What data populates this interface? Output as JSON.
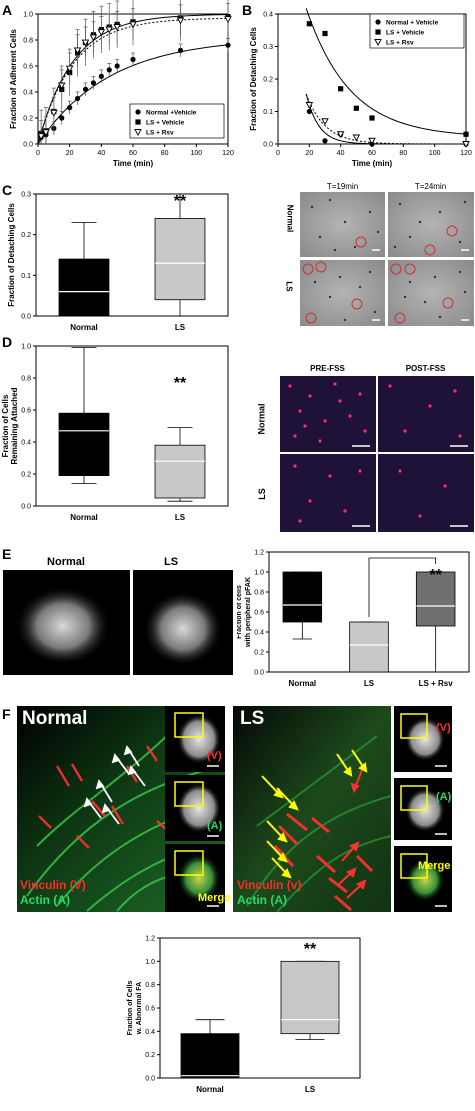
{
  "panels": {
    "A": {
      "letter": "A"
    },
    "B": {
      "letter": "B"
    },
    "C": {
      "letter": "C"
    },
    "D": {
      "letter": "D"
    },
    "E": {
      "letter": "E"
    },
    "F": {
      "letter": "F"
    }
  },
  "chart_data": [
    {
      "id": "A",
      "type": "line",
      "ylabel": "Fraction of Adherent Cells",
      "xlabel": "Time (min)",
      "xlim": [
        0,
        120
      ],
      "ylim": [
        0,
        1.0
      ],
      "xticks": [
        "0",
        "20",
        "40",
        "60",
        "80",
        "100",
        "120"
      ],
      "yticks": [
        "0.0",
        "0.2",
        "0.4",
        "0.6",
        "0.8",
        "1.0"
      ],
      "legend_position": "bottom-right",
      "series": [
        {
          "name": "Normal +Vehicle",
          "marker": "circle",
          "x": [
            2,
            5,
            10,
            15,
            20,
            25,
            30,
            35,
            40,
            45,
            50,
            60,
            90,
            120
          ],
          "y": [
            0.05,
            0.07,
            0.12,
            0.2,
            0.28,
            0.35,
            0.42,
            0.47,
            0.52,
            0.57,
            0.6,
            0.65,
            0.72,
            0.76
          ]
        },
        {
          "name": "LS + Vehicle",
          "marker": "square",
          "x": [
            2,
            5,
            10,
            15,
            20,
            25,
            30,
            35,
            40,
            45,
            50,
            60,
            90,
            120
          ],
          "y": [
            0.08,
            0.1,
            0.25,
            0.42,
            0.55,
            0.7,
            0.78,
            0.84,
            0.88,
            0.9,
            0.92,
            0.94,
            0.97,
            0.98
          ]
        },
        {
          "name": "LS + Rsv",
          "marker": "triangle-down",
          "x": [
            2,
            5,
            10,
            15,
            20,
            25,
            30,
            35,
            40,
            45,
            50,
            60,
            90,
            120
          ],
          "y": [
            0.06,
            0.09,
            0.24,
            0.45,
            0.58,
            0.72,
            0.78,
            0.82,
            0.86,
            0.88,
            0.9,
            0.92,
            0.95,
            0.96
          ]
        }
      ]
    },
    {
      "id": "B",
      "type": "scatter",
      "ylabel": "Fraction of Detaching Cells",
      "xlabel": "Time (min)",
      "xlim": [
        0,
        120
      ],
      "ylim": [
        0,
        0.4
      ],
      "xticks": [
        "0",
        "20",
        "40",
        "60",
        "80",
        "100",
        "120"
      ],
      "yticks": [
        "0.0",
        "0.1",
        "0.2",
        "0.3",
        "0.4"
      ],
      "legend_position": "top-right",
      "series": [
        {
          "name": "Normal + Vehicle",
          "marker": "circle",
          "x": [
            20,
            30,
            40,
            60,
            120
          ],
          "y": [
            0.1,
            0.01,
            0.03,
            0.0,
            0.0
          ]
        },
        {
          "name": "LS + Vehicle",
          "marker": "square",
          "x": [
            20,
            30,
            40,
            50,
            60,
            120
          ],
          "y": [
            0.37,
            0.34,
            0.17,
            0.11,
            0.08,
            0.03
          ]
        },
        {
          "name": "LS + Rsv",
          "marker": "triangle-down",
          "x": [
            20,
            30,
            40,
            50,
            60,
            120
          ],
          "y": [
            0.12,
            0.07,
            0.03,
            0.02,
            0.01,
            0.0
          ]
        }
      ]
    },
    {
      "id": "C",
      "type": "box",
      "ylabel": "Fraction of Detaching Cells",
      "ylim": [
        0,
        0.3
      ],
      "yticks": [
        "0.0",
        "0.1",
        "0.2",
        "0.3"
      ],
      "annotation": "**",
      "categories": [
        "Normal",
        "LS"
      ],
      "boxes": [
        {
          "min": 0.0,
          "q1": 0.0,
          "median": 0.06,
          "q3": 0.14,
          "max": 0.23,
          "color": "#000000",
          "median_color": "#ffffff"
        },
        {
          "min": 0.0,
          "q1": 0.04,
          "median": 0.13,
          "q3": 0.24,
          "max": 0.3,
          "color": "#c8c8c8",
          "median_color": "#ffffff"
        }
      ]
    },
    {
      "id": "D",
      "type": "box",
      "ylabel": "Fraction of Cells Remaining Attached",
      "ylim": [
        0,
        1.0
      ],
      "yticks": [
        "0.0",
        "0.2",
        "0.4",
        "0.6",
        "0.8",
        "1.0"
      ],
      "annotation": "**",
      "categories": [
        "Normal",
        "LS"
      ],
      "boxes": [
        {
          "min": 0.14,
          "q1": 0.19,
          "median": 0.47,
          "q3": 0.58,
          "max": 0.99,
          "color": "#000000",
          "median_color": "#ffffff"
        },
        {
          "min": 0.03,
          "q1": 0.05,
          "median": 0.28,
          "q3": 0.38,
          "max": 0.49,
          "color": "#c8c8c8",
          "median_color": "#ffffff"
        }
      ]
    },
    {
      "id": "E",
      "type": "box",
      "ylabel": "Fraction of cells with peripheral pFAK",
      "ylim": [
        0,
        1.2
      ],
      "yticks": [
        "0.0",
        "0.2",
        "0.4",
        "0.6",
        "0.8",
        "1.0",
        "1.2"
      ],
      "annotation": "**",
      "categories": [
        "Normal",
        "LS",
        "LS + Rsv"
      ],
      "boxes": [
        {
          "min": 0.33,
          "q1": 0.5,
          "median": 0.67,
          "q3": 1.0,
          "max": 1.0,
          "color": "#000000",
          "median_color": "#ffffff"
        },
        {
          "min": 0.0,
          "q1": 0.0,
          "median": 0.27,
          "q3": 0.5,
          "max": 0.5,
          "color": "#c8c8c8",
          "median_color": "#ffffff"
        },
        {
          "min": 0.0,
          "q1": 0.46,
          "median": 0.66,
          "q3": 1.0,
          "max": 1.0,
          "color": "#707070",
          "median_color": "#ffffff"
        }
      ]
    },
    {
      "id": "F",
      "type": "box",
      "ylabel": "Fraction of Cells w. Abnormal FA",
      "ylim": [
        0,
        1.2
      ],
      "yticks": [
        "0.0",
        "0.2",
        "0.4",
        "0.6",
        "0.8",
        "1.0",
        "1.2"
      ],
      "annotation": "**",
      "categories": [
        "Normal",
        "LS"
      ],
      "boxes": [
        {
          "min": 0.0,
          "q1": 0.0,
          "median": 0.02,
          "q3": 0.38,
          "max": 0.5,
          "color": "#000000",
          "median_color": "#ffffff"
        },
        {
          "min": 0.33,
          "q1": 0.38,
          "median": 0.5,
          "q3": 1.0,
          "max": 1.0,
          "color": "#c8c8c8",
          "median_color": "#ffffff"
        }
      ]
    }
  ],
  "micrographs": {
    "C": {
      "col1": "T=19min",
      "col2": "T=24min",
      "row1": "Normal",
      "row2": "LS"
    },
    "D": {
      "col1": "PRE-FSS",
      "col2": "POST-FSS",
      "row1": "Normal",
      "row2": "LS"
    },
    "E": {
      "left": "Normal",
      "right": "LS"
    },
    "F": {
      "normal_title": "Normal",
      "ls_title": "LS",
      "v_label": "(V)",
      "a_label": "(A)",
      "merge": "Merge",
      "normal_vinculin": "Vinculin (V)",
      "normal_actin": "Actin (A)",
      "ls_vinculin": "Vinculin (v)",
      "ls_actin": "Actin (A)"
    }
  },
  "colors": {
    "ring": "#d03030",
    "pink": "#ff2a6a",
    "yellow": "#ffff00",
    "red": "#ff2020",
    "green": "#22dd66"
  }
}
